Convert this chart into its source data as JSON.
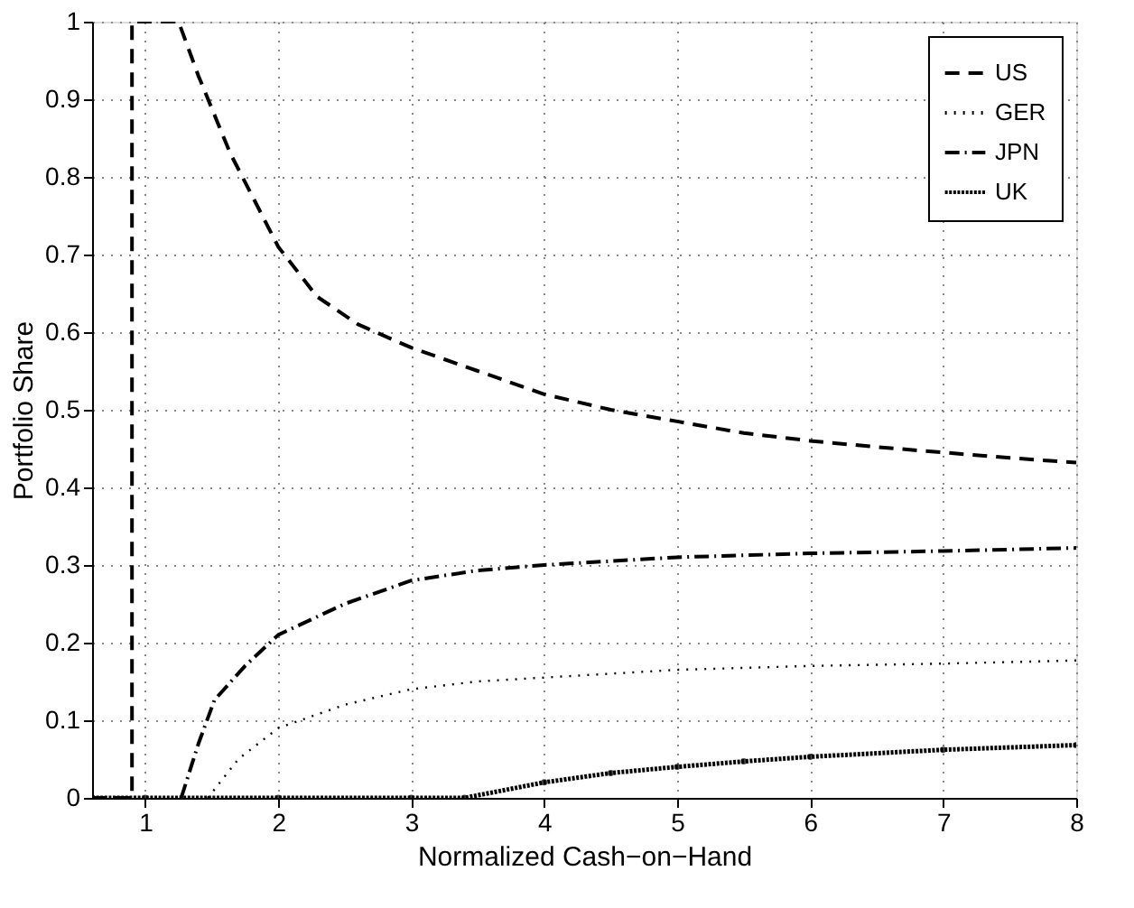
{
  "chart_data": {
    "type": "line",
    "xlabel": "Normalized Cash−on−Hand",
    "ylabel": "Portfolio Share",
    "xlim": [
      0.6,
      8
    ],
    "xticks": [
      1,
      2,
      3,
      4,
      5,
      6,
      7,
      8
    ],
    "ylim": [
      0,
      1
    ],
    "yticks": [
      0,
      0.1,
      0.2,
      0.3,
      0.4,
      0.5,
      0.6,
      0.7,
      0.8,
      0.9,
      1
    ],
    "grid": true,
    "legend": "top right",
    "series": [
      {
        "name": "US",
        "color": "#000000",
        "line_style": "dashed",
        "x": [
          0.6,
          0.9,
          0.9,
          1.25,
          1.4,
          1.64,
          2,
          2.29,
          2.6,
          3,
          3.5,
          4,
          4.5,
          5,
          5.5,
          6,
          6.5,
          7,
          7.5,
          8
        ],
        "values": [
          0,
          0,
          1,
          1,
          0.93,
          0.83,
          0.71,
          0.646,
          0.61,
          0.58,
          0.55,
          0.52,
          0.5,
          0.485,
          0.47,
          0.46,
          0.452,
          0.445,
          0.438,
          0.432
        ]
      },
      {
        "name": "GER",
        "color": "#000000",
        "line_style": "dotted",
        "x": [
          1.47,
          1.7,
          2,
          2.5,
          3,
          3.5,
          4,
          5,
          6,
          7,
          8
        ],
        "values": [
          0,
          0.05,
          0.09,
          0.12,
          0.14,
          0.15,
          0.155,
          0.165,
          0.17,
          0.173,
          0.177
        ]
      },
      {
        "name": "JPN",
        "color": "#000000",
        "line_style": "dashdot",
        "x": [
          1.27,
          1.4,
          1.52,
          1.75,
          2,
          2.5,
          3,
          3.5,
          4,
          5,
          6,
          7,
          8
        ],
        "values": [
          0,
          0.07,
          0.126,
          0.17,
          0.21,
          0.25,
          0.28,
          0.293,
          0.3,
          0.31,
          0.315,
          0.318,
          0.322
        ]
      },
      {
        "name": "UK",
        "color": "#000000",
        "line_style": "dotted",
        "marker": "circle",
        "x": [
          0.6,
          1,
          2,
          3,
          3.4,
          4,
          4.5,
          5,
          5.5,
          6,
          7,
          8
        ],
        "values": [
          0,
          0,
          0,
          0,
          0,
          0.02,
          0.032,
          0.04,
          0.047,
          0.053,
          0.062,
          0.068
        ]
      }
    ]
  }
}
